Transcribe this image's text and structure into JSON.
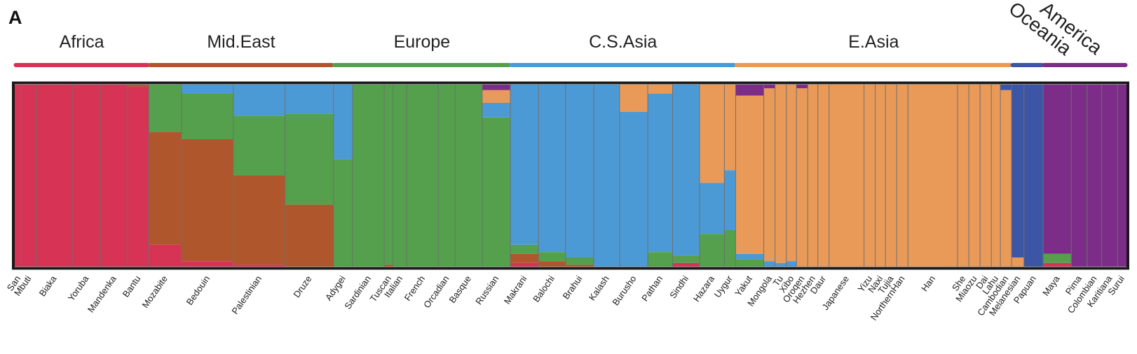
{
  "panel_label": "A",
  "colors": {
    "africa": "#d63355",
    "mideast": "#b0562c",
    "europe": "#54a04c",
    "csasia": "#4b9ad6",
    "easia": "#e99a58",
    "oceania": "#3c55a5",
    "america": "#7b2d87"
  },
  "chart_data": {
    "type": "stacked-bar",
    "title": "",
    "y_range": [
      0,
      1
    ],
    "components": [
      "africa",
      "mideast",
      "europe",
      "csasia",
      "easia",
      "oceania",
      "america"
    ],
    "regions": [
      {
        "label": "Africa",
        "color": "africa",
        "rotated": false
      },
      {
        "label": "Mid.East",
        "color": "mideast",
        "rotated": false
      },
      {
        "label": "Europe",
        "color": "europe",
        "rotated": false
      },
      {
        "label": "C.S.Asia",
        "color": "csasia",
        "rotated": false
      },
      {
        "label": "E.Asia",
        "color": "easia",
        "rotated": false
      },
      {
        "label": "Oceania",
        "color": "oceania",
        "rotated": true
      },
      {
        "label": "America",
        "color": "america",
        "rotated": true
      }
    ],
    "populations": [
      {
        "name": "San",
        "region": "Africa",
        "n": 6,
        "fractions": {
          "africa": 1.0
        }
      },
      {
        "name": "Mbuti",
        "region": "Africa",
        "n": 13,
        "fractions": {
          "africa": 1.0
        }
      },
      {
        "name": "Biaka",
        "region": "Africa",
        "n": 32,
        "fractions": {
          "africa": 1.0
        }
      },
      {
        "name": "Yoruba",
        "region": "Africa",
        "n": 25,
        "fractions": {
          "africa": 1.0
        }
      },
      {
        "name": "Mandenka",
        "region": "Africa",
        "n": 24,
        "fractions": {
          "africa": 1.0
        }
      },
      {
        "name": "Bantu",
        "region": "Africa",
        "n": 19,
        "fractions": {
          "africa": 0.99,
          "mideast": 0.01
        }
      },
      {
        "name": "Mozabite",
        "region": "Mid.East",
        "n": 29,
        "fractions": {
          "africa": 0.12,
          "mideast": 0.62,
          "europe": 0.26
        }
      },
      {
        "name": "Bedouin",
        "region": "Mid.East",
        "n": 46,
        "fractions": {
          "africa": 0.03,
          "mideast": 0.67,
          "europe": 0.25,
          "csasia": 0.05
        }
      },
      {
        "name": "Palestinian",
        "region": "Mid.East",
        "n": 46,
        "fractions": {
          "africa": 0.01,
          "mideast": 0.49,
          "europe": 0.33,
          "csasia": 0.17
        }
      },
      {
        "name": "Druze",
        "region": "Mid.East",
        "n": 43,
        "fractions": {
          "mideast": 0.34,
          "europe": 0.5,
          "csasia": 0.16
        }
      },
      {
        "name": "Adygei",
        "region": "Europe",
        "n": 17,
        "fractions": {
          "europe": 0.59,
          "csasia": 0.41
        }
      },
      {
        "name": "Sardinian",
        "region": "Europe",
        "n": 28,
        "fractions": {
          "europe": 1.0
        }
      },
      {
        "name": "Tuscan",
        "region": "Europe",
        "n": 8,
        "fractions": {
          "europe": 0.99,
          "mideast": 0.01
        }
      },
      {
        "name": "Italian",
        "region": "Europe",
        "n": 12,
        "fractions": {
          "europe": 1.0
        }
      },
      {
        "name": "French",
        "region": "Europe",
        "n": 28,
        "fractions": {
          "europe": 1.0
        }
      },
      {
        "name": "Orcadian",
        "region": "Europe",
        "n": 15,
        "fractions": {
          "europe": 1.0
        }
      },
      {
        "name": "Basque",
        "region": "Europe",
        "n": 24,
        "fractions": {
          "europe": 1.0
        }
      },
      {
        "name": "Russian",
        "region": "Europe",
        "n": 25,
        "fractions": {
          "europe": 0.82,
          "csasia": 0.08,
          "easia": 0.07,
          "america": 0.03
        }
      },
      {
        "name": "Makrani",
        "region": "C.S.Asia",
        "n": 25,
        "fractions": {
          "africa": 0.02,
          "mideast": 0.05,
          "europe": 0.05,
          "csasia": 0.88
        }
      },
      {
        "name": "Balochi",
        "region": "C.S.Asia",
        "n": 24,
        "fractions": {
          "mideast": 0.03,
          "europe": 0.05,
          "csasia": 0.92
        }
      },
      {
        "name": "Brahui",
        "region": "C.S.Asia",
        "n": 25,
        "fractions": {
          "mideast": 0.01,
          "europe": 0.04,
          "csasia": 0.95
        }
      },
      {
        "name": "Kalash",
        "region": "C.S.Asia",
        "n": 23,
        "fractions": {
          "csasia": 1.0
        }
      },
      {
        "name": "Burusho",
        "region": "C.S.Asia",
        "n": 25,
        "fractions": {
          "csasia": 0.85,
          "easia": 0.15
        }
      },
      {
        "name": "Pathan",
        "region": "C.S.Asia",
        "n": 22,
        "fractions": {
          "europe": 0.08,
          "csasia": 0.87,
          "easia": 0.05
        }
      },
      {
        "name": "Sindhi",
        "region": "C.S.Asia",
        "n": 24,
        "fractions": {
          "africa": 0.02,
          "europe": 0.04,
          "csasia": 0.94
        }
      },
      {
        "name": "Hazara",
        "region": "C.S.Asia",
        "n": 22,
        "fractions": {
          "europe": 0.18,
          "csasia": 0.28,
          "easia": 0.54
        }
      },
      {
        "name": "Uygur",
        "region": "C.S.Asia",
        "n": 10,
        "fractions": {
          "europe": 0.2,
          "csasia": 0.33,
          "easia": 0.47
        }
      },
      {
        "name": "Yakut",
        "region": "E.Asia",
        "n": 25,
        "fractions": {
          "europe": 0.04,
          "csasia": 0.03,
          "easia": 0.87,
          "america": 0.06
        }
      },
      {
        "name": "Mongola",
        "region": "E.Asia",
        "n": 10,
        "fractions": {
          "csasia": 0.03,
          "easia": 0.95,
          "america": 0.02
        }
      },
      {
        "name": "Tu",
        "region": "E.Asia",
        "n": 10,
        "fractions": {
          "csasia": 0.02,
          "easia": 0.98
        }
      },
      {
        "name": "Xibo",
        "region": "E.Asia",
        "n": 9,
        "fractions": {
          "csasia": 0.03,
          "easia": 0.97
        }
      },
      {
        "name": "Oroqen",
        "region": "E.Asia",
        "n": 10,
        "fractions": {
          "easia": 0.98,
          "america": 0.02
        }
      },
      {
        "name": "Hezhen",
        "region": "E.Asia",
        "n": 9,
        "fractions": {
          "easia": 1.0
        }
      },
      {
        "name": "Daur",
        "region": "E.Asia",
        "n": 10,
        "fractions": {
          "easia": 1.0
        }
      },
      {
        "name": "Japanese",
        "region": "E.Asia",
        "n": 31,
        "fractions": {
          "easia": 1.0
        }
      },
      {
        "name": "Yizu",
        "region": "E.Asia",
        "n": 10,
        "fractions": {
          "easia": 1.0
        }
      },
      {
        "name": "Naxi",
        "region": "E.Asia",
        "n": 9,
        "fractions": {
          "easia": 1.0
        }
      },
      {
        "name": "Tujia",
        "region": "E.Asia",
        "n": 10,
        "fractions": {
          "easia": 1.0
        }
      },
      {
        "name": "NorthernHan",
        "region": "E.Asia",
        "n": 10,
        "fractions": {
          "easia": 1.0
        }
      },
      {
        "name": "Han",
        "region": "E.Asia",
        "n": 44,
        "fractions": {
          "easia": 1.0
        }
      },
      {
        "name": "She",
        "region": "E.Asia",
        "n": 10,
        "fractions": {
          "easia": 1.0
        }
      },
      {
        "name": "Miaozu",
        "region": "E.Asia",
        "n": 10,
        "fractions": {
          "easia": 1.0
        }
      },
      {
        "name": "Dai",
        "region": "E.Asia",
        "n": 10,
        "fractions": {
          "easia": 1.0
        }
      },
      {
        "name": "Lahu",
        "region": "E.Asia",
        "n": 8,
        "fractions": {
          "easia": 1.0
        }
      },
      {
        "name": "Cambodian",
        "region": "E.Asia",
        "n": 10,
        "fractions": {
          "easia": 0.97,
          "oceania": 0.03
        }
      },
      {
        "name": "Melanesian",
        "region": "Oceania",
        "n": 11,
        "fractions": {
          "oceania": 0.95,
          "easia": 0.05
        }
      },
      {
        "name": "Papuan",
        "region": "Oceania",
        "n": 17,
        "fractions": {
          "oceania": 1.0
        }
      },
      {
        "name": "Maya",
        "region": "America",
        "n": 25,
        "fractions": {
          "america": 0.93,
          "europe": 0.05,
          "africa": 0.02
        }
      },
      {
        "name": "Pima",
        "region": "America",
        "n": 14,
        "fractions": {
          "america": 1.0
        }
      },
      {
        "name": "Colombian",
        "region": "America",
        "n": 13,
        "fractions": {
          "america": 1.0
        }
      },
      {
        "name": "Karitiana",
        "region": "America",
        "n": 14,
        "fractions": {
          "america": 1.0
        }
      },
      {
        "name": "Surui",
        "region": "America",
        "n": 8,
        "fractions": {
          "america": 1.0
        }
      }
    ]
  }
}
